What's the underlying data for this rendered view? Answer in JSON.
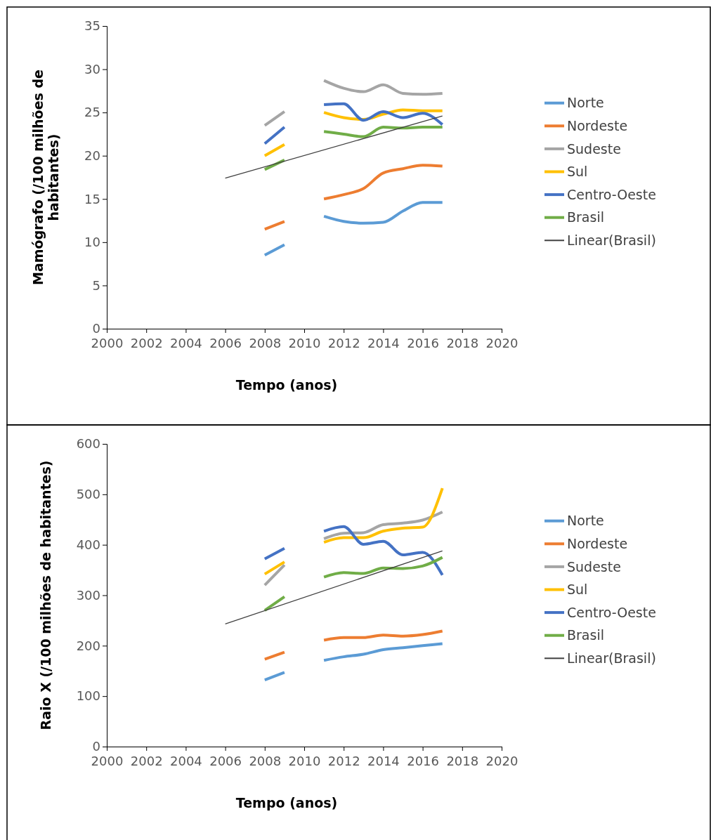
{
  "chart_data": [
    {
      "type": "line",
      "xlabel": "Tempo (anos)",
      "ylabel": "Mamógrafo (/100 milhões de habitantes)",
      "xlim": [
        2000,
        2020
      ],
      "xticks": [
        2000,
        2002,
        2004,
        2006,
        2008,
        2010,
        2012,
        2014,
        2016,
        2018,
        2020
      ],
      "ylim": [
        0,
        35
      ],
      "yticks": [
        0,
        5,
        10,
        15,
        20,
        25,
        30,
        35
      ],
      "legend": "right",
      "grid": false,
      "series": [
        {
          "name": "Norte",
          "color": "#5b9bd5",
          "x": [
            2008,
            2009,
            2010,
            2011,
            2012,
            2013,
            2014,
            2015,
            2016,
            2017
          ],
          "values": [
            8.5,
            9.7,
            null,
            13.0,
            12.4,
            12.2,
            12.3,
            13.6,
            14.6,
            14.6
          ]
        },
        {
          "name": "Nordeste",
          "color": "#ed7d31",
          "x": [
            2008,
            2009,
            2010,
            2011,
            2012,
            2013,
            2014,
            2015,
            2016,
            2017
          ],
          "values": [
            11.5,
            12.4,
            null,
            15.0,
            15.5,
            16.2,
            18.0,
            18.5,
            18.9,
            18.8
          ]
        },
        {
          "name": "Sudeste",
          "color": "#a5a5a5",
          "x": [
            2008,
            2009,
            2010,
            2011,
            2012,
            2013,
            2014,
            2015,
            2016,
            2017
          ],
          "values": [
            23.5,
            25.1,
            null,
            28.7,
            27.8,
            27.4,
            28.2,
            27.2,
            27.1,
            27.2
          ]
        },
        {
          "name": "Sul",
          "color": "#ffc000",
          "x": [
            2008,
            2009,
            2010,
            2011,
            2012,
            2013,
            2014,
            2015,
            2016,
            2017
          ],
          "values": [
            20.0,
            21.3,
            null,
            25.0,
            24.4,
            24.2,
            24.8,
            25.3,
            25.2,
            25.2
          ]
        },
        {
          "name": "Centro-Oeste",
          "color": "#4472c4",
          "x": [
            2008,
            2009,
            2010,
            2011,
            2012,
            2013,
            2014,
            2015,
            2016,
            2017
          ],
          "values": [
            21.4,
            23.3,
            null,
            25.9,
            26.0,
            24.1,
            25.1,
            24.4,
            24.9,
            23.6
          ]
        },
        {
          "name": "Brasil",
          "color": "#70ad47",
          "x": [
            2008,
            2009,
            2010,
            2011,
            2012,
            2013,
            2014,
            2015,
            2016,
            2017
          ],
          "values": [
            18.4,
            19.5,
            null,
            22.8,
            22.5,
            22.2,
            23.3,
            23.2,
            23.3,
            23.3
          ]
        },
        {
          "name": "Linear(Brasil)",
          "color": "#404040",
          "x": [
            2006,
            2017
          ],
          "values": [
            17.4,
            24.6
          ]
        }
      ]
    },
    {
      "type": "line",
      "xlabel": "Tempo (anos)",
      "ylabel": "Raio X (/100 milhões de habitantes)",
      "xlim": [
        2000,
        2020
      ],
      "xticks": [
        2000,
        2002,
        2004,
        2006,
        2008,
        2010,
        2012,
        2014,
        2016,
        2018,
        2020
      ],
      "ylim": [
        0,
        600
      ],
      "yticks": [
        0,
        100,
        200,
        300,
        400,
        500,
        600
      ],
      "legend": "right",
      "grid": false,
      "series": [
        {
          "name": "Norte",
          "color": "#5b9bd5",
          "x": [
            2008,
            2009,
            2010,
            2011,
            2012,
            2013,
            2014,
            2015,
            2016,
            2017
          ],
          "values": [
            132,
            147,
            null,
            171,
            178,
            183,
            192,
            196,
            200,
            204
          ]
        },
        {
          "name": "Nordeste",
          "color": "#ed7d31",
          "x": [
            2008,
            2009,
            2010,
            2011,
            2012,
            2013,
            2014,
            2015,
            2016,
            2017
          ],
          "values": [
            173,
            187,
            null,
            211,
            216,
            216,
            221,
            219,
            222,
            229
          ]
        },
        {
          "name": "Sudeste",
          "color": "#a5a5a5",
          "x": [
            2008,
            2009,
            2010,
            2011,
            2012,
            2013,
            2014,
            2015,
            2016,
            2017
          ],
          "values": [
            320,
            360,
            null,
            412,
            423,
            424,
            440,
            443,
            449,
            465
          ]
        },
        {
          "name": "Sul",
          "color": "#ffc000",
          "x": [
            2008,
            2009,
            2010,
            2011,
            2012,
            2013,
            2014,
            2015,
            2016,
            2017
          ],
          "values": [
            342,
            366,
            null,
            405,
            414,
            414,
            427,
            433,
            435,
            512
          ]
        },
        {
          "name": "Centro-Oeste",
          "color": "#4472c4",
          "x": [
            2008,
            2009,
            2010,
            2011,
            2012,
            2013,
            2014,
            2015,
            2016,
            2017
          ],
          "values": [
            372,
            393,
            null,
            427,
            436,
            401,
            407,
            380,
            385,
            340
          ]
        },
        {
          "name": "Brasil",
          "color": "#70ad47",
          "x": [
            2008,
            2009,
            2010,
            2011,
            2012,
            2013,
            2014,
            2015,
            2016,
            2017
          ],
          "values": [
            270,
            297,
            null,
            336,
            345,
            343,
            354,
            353,
            358,
            375
          ]
        },
        {
          "name": "Linear(Brasil)",
          "color": "#404040",
          "x": [
            2006,
            2017
          ],
          "values": [
            243,
            388
          ]
        }
      ]
    }
  ]
}
